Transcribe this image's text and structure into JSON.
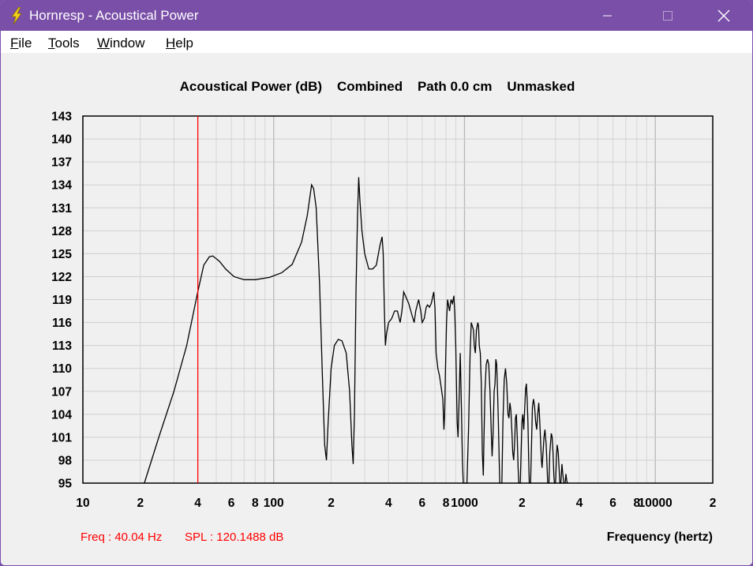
{
  "window": {
    "title": "Hornresp - Acoustical Power",
    "app_icon": "lightning-bolt-icon",
    "controls": [
      "minimize-icon",
      "maximize-icon",
      "close-icon"
    ]
  },
  "menu": {
    "items": [
      {
        "label": "File",
        "accel": "F",
        "rest": "ile"
      },
      {
        "label": "Tools",
        "accel": "T",
        "rest": "ools"
      },
      {
        "label": "Window",
        "accel": "W",
        "rest": "indow"
      },
      {
        "label": "Help",
        "accel": "H",
        "rest": "elp"
      }
    ]
  },
  "chart_data": {
    "type": "line",
    "title": "Acoustical Power (dB)    Combined    Path 0.0 cm    Unmasked",
    "xlabel": "Frequency (hertz)",
    "ylabel": "",
    "x_scale": "log",
    "xlim": [
      10,
      20000
    ],
    "ylim": [
      95,
      143
    ],
    "y_ticks": [
      143,
      140,
      137,
      134,
      131,
      128,
      125,
      122,
      119,
      116,
      113,
      110,
      107,
      104,
      101,
      98,
      95
    ],
    "x_tick_labels": [
      {
        "f": 10,
        "label": "10"
      },
      {
        "f": 20,
        "label": "2"
      },
      {
        "f": 40,
        "label": "4"
      },
      {
        "f": 60,
        "label": "6"
      },
      {
        "f": 80,
        "label": "8"
      },
      {
        "f": 100,
        "label": "100"
      },
      {
        "f": 200,
        "label": "2"
      },
      {
        "f": 400,
        "label": "4"
      },
      {
        "f": 600,
        "label": "6"
      },
      {
        "f": 800,
        "label": "8"
      },
      {
        "f": 1000,
        "label": "1000"
      },
      {
        "f": 2000,
        "label": "2"
      },
      {
        "f": 4000,
        "label": "4"
      },
      {
        "f": 6000,
        "label": "6"
      },
      {
        "f": 8000,
        "label": "8"
      },
      {
        "f": 10000,
        "label": "10000"
      },
      {
        "f": 20000,
        "label": "2"
      }
    ],
    "grid": true,
    "cursor": {
      "freq": 40.04,
      "spl": 120.1488,
      "color": "#ff0000"
    },
    "readout": {
      "freq_text": "Freq : 40.04 Hz",
      "spl_text": "SPL : 120.1488 dB"
    },
    "series": [
      {
        "color": "#000000",
        "points": [
          [
            21,
            95
          ],
          [
            25,
            101
          ],
          [
            30,
            107
          ],
          [
            35,
            113
          ],
          [
            40,
            120
          ],
          [
            43,
            123.5
          ],
          [
            46,
            124.6
          ],
          [
            48,
            124.7
          ],
          [
            52,
            124
          ],
          [
            56,
            123
          ],
          [
            62,
            122
          ],
          [
            70,
            121.6
          ],
          [
            80,
            121.6
          ],
          [
            95,
            121.9
          ],
          [
            110,
            122.5
          ],
          [
            125,
            123.6
          ],
          [
            140,
            126.5
          ],
          [
            150,
            130
          ],
          [
            158,
            134
          ],
          [
            162,
            133.5
          ],
          [
            167,
            131
          ],
          [
            174,
            121
          ],
          [
            180,
            109
          ],
          [
            185,
            100
          ],
          [
            189,
            98
          ],
          [
            193,
            103
          ],
          [
            200,
            110
          ],
          [
            208,
            113
          ],
          [
            218,
            113.8
          ],
          [
            228,
            113.6
          ],
          [
            240,
            112
          ],
          [
            250,
            107
          ],
          [
            257,
            100
          ],
          [
            261,
            97.5
          ],
          [
            265,
            104
          ],
          [
            270,
            120
          ],
          [
            275,
            130
          ],
          [
            279,
            135
          ],
          [
            283,
            132
          ],
          [
            290,
            128
          ],
          [
            300,
            125
          ],
          [
            315,
            123
          ],
          [
            330,
            123
          ],
          [
            345,
            123.5
          ],
          [
            360,
            126
          ],
          [
            370,
            127.2
          ],
          [
            375,
            125
          ],
          [
            380,
            118
          ],
          [
            385,
            113
          ],
          [
            390,
            114.5
          ],
          [
            400,
            116
          ],
          [
            415,
            116.5
          ],
          [
            430,
            117.5
          ],
          [
            445,
            117.5
          ],
          [
            460,
            116
          ],
          [
            470,
            117.5
          ],
          [
            480,
            120
          ],
          [
            490,
            119.5
          ],
          [
            510,
            118.5
          ],
          [
            530,
            117
          ],
          [
            545,
            116
          ],
          [
            555,
            117.5
          ],
          [
            575,
            119
          ],
          [
            590,
            117.5
          ],
          [
            600,
            116
          ],
          [
            615,
            116.5
          ],
          [
            630,
            118
          ],
          [
            640,
            118.3
          ],
          [
            655,
            118
          ],
          [
            670,
            118.5
          ],
          [
            690,
            120
          ],
          [
            700,
            118
          ],
          [
            710,
            112
          ],
          [
            725,
            110
          ],
          [
            740,
            109
          ],
          [
            755,
            107.5
          ],
          [
            770,
            106
          ],
          [
            780,
            102
          ],
          [
            787,
            104
          ],
          [
            795,
            110
          ],
          [
            805,
            116
          ],
          [
            815,
            119
          ],
          [
            835,
            117.5
          ],
          [
            850,
            119
          ],
          [
            865,
            118.5
          ],
          [
            880,
            119.5
          ],
          [
            890,
            117
          ],
          [
            900,
            113
          ],
          [
            915,
            103
          ],
          [
            925,
            101
          ],
          [
            935,
            105
          ],
          [
            950,
            112
          ],
          [
            965,
            104
          ],
          [
            975,
            98
          ],
          [
            985,
            95
          ],
          [
            1030,
            95
          ],
          [
            1050,
            102
          ],
          [
            1070,
            112
          ],
          [
            1085,
            116
          ],
          [
            1100,
            115.5
          ],
          [
            1115,
            115
          ],
          [
            1125,
            113
          ],
          [
            1140,
            112
          ],
          [
            1155,
            115
          ],
          [
            1175,
            116
          ],
          [
            1185,
            115.5
          ],
          [
            1195,
            113
          ],
          [
            1210,
            112
          ],
          [
            1225,
            108
          ],
          [
            1240,
            99
          ],
          [
            1255,
            96
          ],
          [
            1265,
            101
          ],
          [
            1280,
            107
          ],
          [
            1300,
            110.5
          ],
          [
            1320,
            111.2
          ],
          [
            1340,
            110.5
          ],
          [
            1360,
            107
          ],
          [
            1380,
            102
          ],
          [
            1395,
            98.5
          ],
          [
            1410,
            101
          ],
          [
            1430,
            107
          ],
          [
            1445,
            108
          ],
          [
            1460,
            111.2
          ],
          [
            1475,
            110.5
          ],
          [
            1490,
            107
          ],
          [
            1505,
            103
          ],
          [
            1520,
            98
          ],
          [
            1530,
            95
          ],
          [
            1570,
            95
          ],
          [
            1590,
            103
          ],
          [
            1615,
            108.5
          ],
          [
            1640,
            110
          ],
          [
            1665,
            108
          ],
          [
            1690,
            104
          ],
          [
            1710,
            103.5
          ],
          [
            1730,
            105.5
          ],
          [
            1750,
            104.5
          ],
          [
            1770,
            102
          ],
          [
            1790,
            99
          ],
          [
            1810,
            98
          ],
          [
            1830,
            100
          ],
          [
            1850,
            103.5
          ],
          [
            1870,
            104
          ],
          [
            1890,
            101
          ],
          [
            1910,
            97
          ],
          [
            1925,
            95
          ],
          [
            1960,
            95
          ],
          [
            1980,
            99
          ],
          [
            2000,
            103
          ],
          [
            2020,
            104
          ],
          [
            2045,
            102
          ],
          [
            2070,
            105
          ],
          [
            2090,
            107.3
          ],
          [
            2110,
            108
          ],
          [
            2130,
            106
          ],
          [
            2150,
            103
          ],
          [
            2170,
            98
          ],
          [
            2185,
            95
          ],
          [
            2220,
            95
          ],
          [
            2245,
            100
          ],
          [
            2270,
            105
          ],
          [
            2300,
            106
          ],
          [
            2330,
            105
          ],
          [
            2360,
            103
          ],
          [
            2390,
            102
          ],
          [
            2420,
            104
          ],
          [
            2450,
            105.5
          ],
          [
            2470,
            104
          ],
          [
            2500,
            101
          ],
          [
            2530,
            98
          ],
          [
            2550,
            97
          ],
          [
            2580,
            99
          ],
          [
            2610,
            101
          ],
          [
            2640,
            102
          ],
          [
            2680,
            100
          ],
          [
            2710,
            97
          ],
          [
            2730,
            95
          ],
          [
            2770,
            95
          ],
          [
            2800,
            99
          ],
          [
            2850,
            101.5
          ],
          [
            2880,
            101
          ],
          [
            2910,
            99
          ],
          [
            2940,
            96
          ],
          [
            2960,
            95
          ],
          [
            3000,
            95
          ],
          [
            3030,
            98
          ],
          [
            3060,
            100
          ],
          [
            3100,
            99
          ],
          [
            3130,
            97
          ],
          [
            3160,
            95
          ],
          [
            3200,
            95
          ],
          [
            3240,
            97.5
          ],
          [
            3280,
            96
          ],
          [
            3320,
            95
          ],
          [
            3370,
            95
          ],
          [
            3400,
            96.2
          ],
          [
            3440,
            95.2
          ],
          [
            3480,
            95
          ]
        ]
      }
    ]
  }
}
